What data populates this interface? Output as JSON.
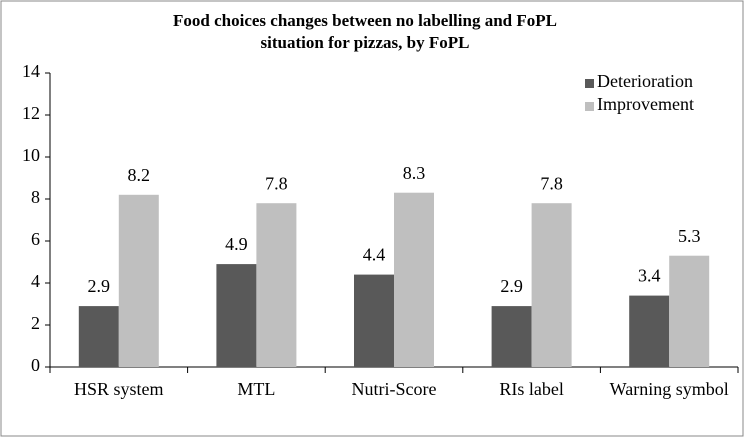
{
  "chart_data": {
    "type": "bar",
    "title": [
      "Food choices changes between no labelling and FoPL",
      "situation for pizzas, by FoPL"
    ],
    "categories": [
      "HSR system",
      "MTL",
      "Nutri-Score",
      "RIs label",
      "Warning symbol"
    ],
    "series": [
      {
        "name": "Deterioration",
        "color": "#595959",
        "values": [
          2.9,
          4.9,
          4.4,
          2.9,
          3.4
        ]
      },
      {
        "name": "Improvement",
        "color": "#bfbfbf",
        "values": [
          8.2,
          7.8,
          8.3,
          7.8,
          5.3
        ]
      }
    ],
    "ylim": [
      0,
      14
    ],
    "yticks": [
      0,
      2,
      4,
      6,
      8,
      10,
      12,
      14
    ],
    "grid": false,
    "legend": "top-right"
  }
}
